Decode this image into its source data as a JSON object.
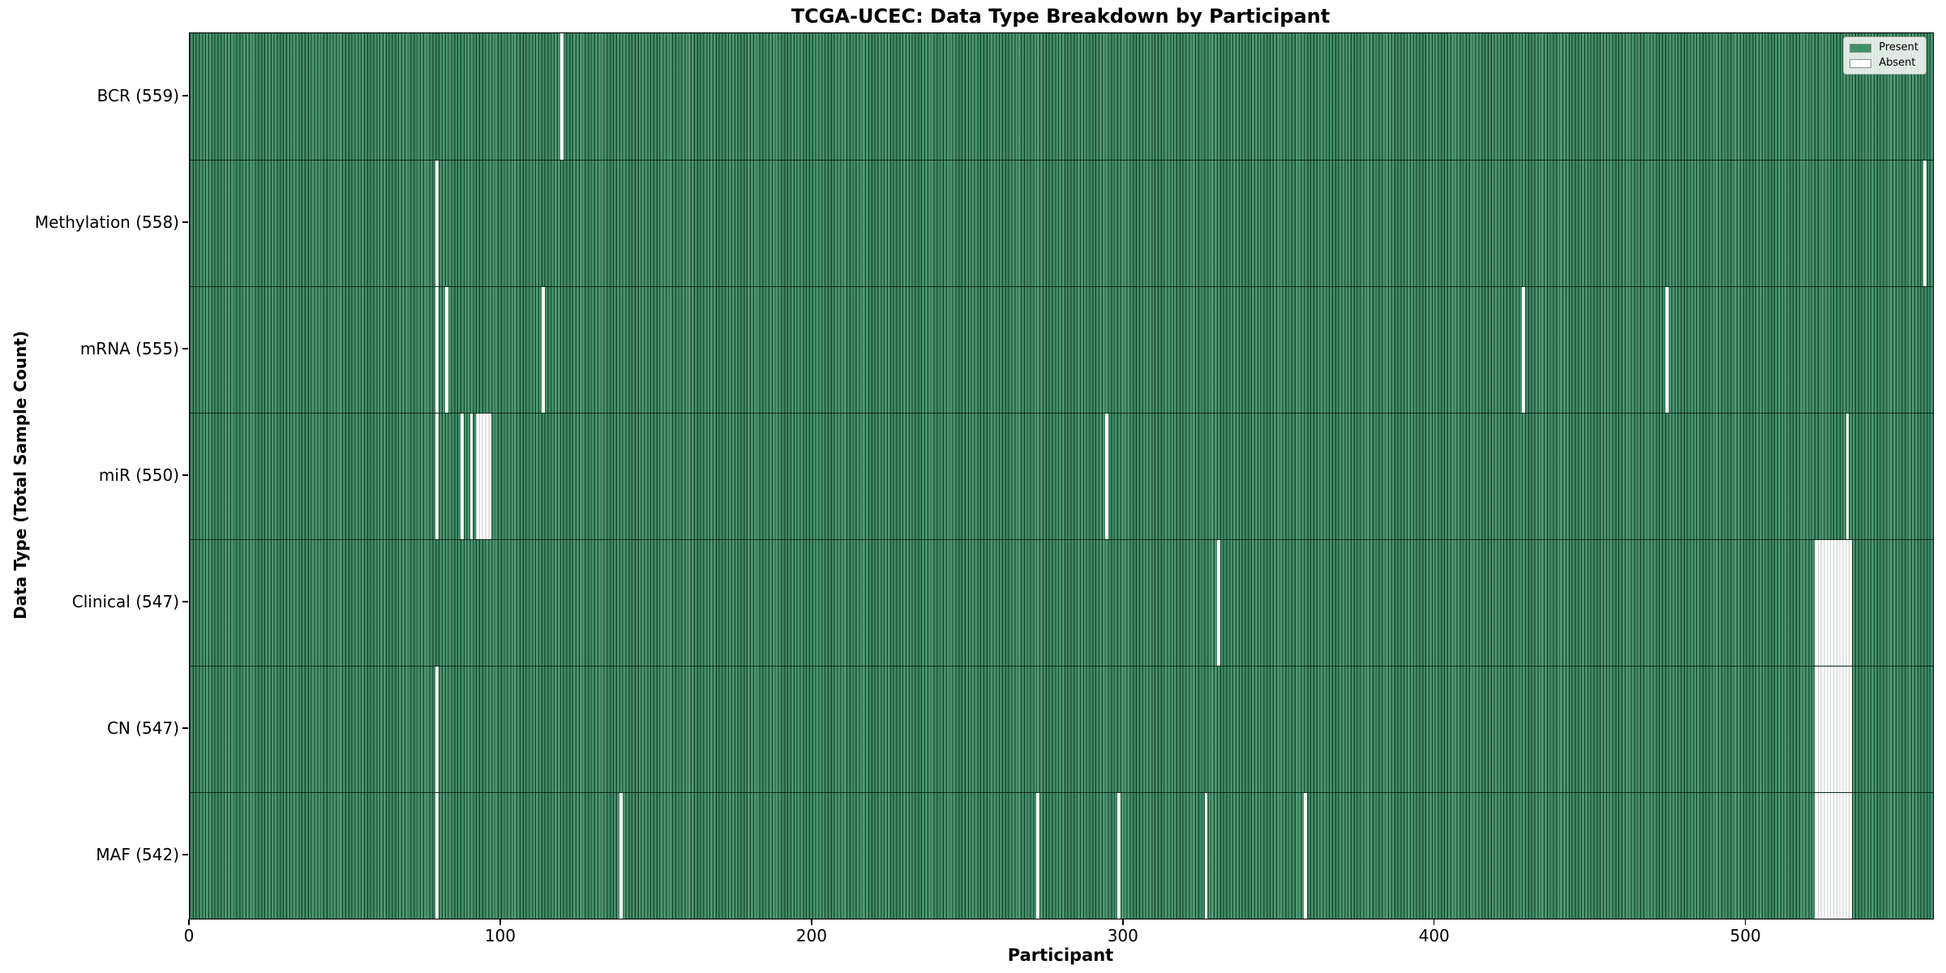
{
  "title": "TCGA-UCEC: Data Type Breakdown by Participant",
  "chart_data": {
    "type": "heatmap",
    "title": "TCGA-UCEC: Data Type Breakdown by Participant",
    "xlabel": "Participant",
    "ylabel": "Data Type (Total Sample Count)",
    "x_ticks": [
      0,
      100,
      200,
      300,
      400,
      500
    ],
    "xlim": [
      0,
      560
    ],
    "n_participants": 560,
    "grid": false,
    "legend_position": "upper right",
    "legend": [
      {
        "label": "Present",
        "color": "#3f9165"
      },
      {
        "label": "Absent",
        "color": "#ffffff"
      }
    ],
    "rows": [
      {
        "name": "BCR",
        "label": "BCR (559)",
        "present_count": 559,
        "absent_participants": [
          119
        ]
      },
      {
        "name": "Methylation",
        "label": "Methylation (558)",
        "present_count": 558,
        "absent_participants": [
          79,
          557
        ]
      },
      {
        "name": "mRNA",
        "label": "mRNA (555)",
        "present_count": 555,
        "absent_participants": [
          79,
          82,
          113,
          428,
          474
        ]
      },
      {
        "name": "miR",
        "label": "miR (550)",
        "present_count": 550,
        "absent_participants": [
          79,
          87,
          90,
          92,
          93,
          94,
          95,
          96,
          294,
          532
        ]
      },
      {
        "name": "Clinical",
        "label": "Clinical (547)",
        "present_count": 547,
        "absent_participants": [
          330,
          522,
          523,
          524,
          525,
          526,
          527,
          528,
          529,
          530,
          531,
          532,
          533
        ]
      },
      {
        "name": "CN",
        "label": "CN (547)",
        "present_count": 547,
        "absent_participants": [
          79,
          522,
          523,
          524,
          525,
          526,
          527,
          528,
          529,
          530,
          531,
          532,
          533
        ]
      },
      {
        "name": "MAF",
        "label": "MAF (542)",
        "present_count": 542,
        "absent_participants": [
          79,
          138,
          272,
          298,
          326,
          358,
          522,
          523,
          524,
          525,
          526,
          527,
          528,
          529,
          530,
          531,
          532,
          533
        ]
      }
    ],
    "colors": {
      "present_fill": "#42946a",
      "bar_edge": "#1d4d32",
      "absent_fill": "#ffffff",
      "absent_edge": "#c7cec9",
      "axes_edge": "#000000",
      "background": "#ffffff"
    }
  }
}
